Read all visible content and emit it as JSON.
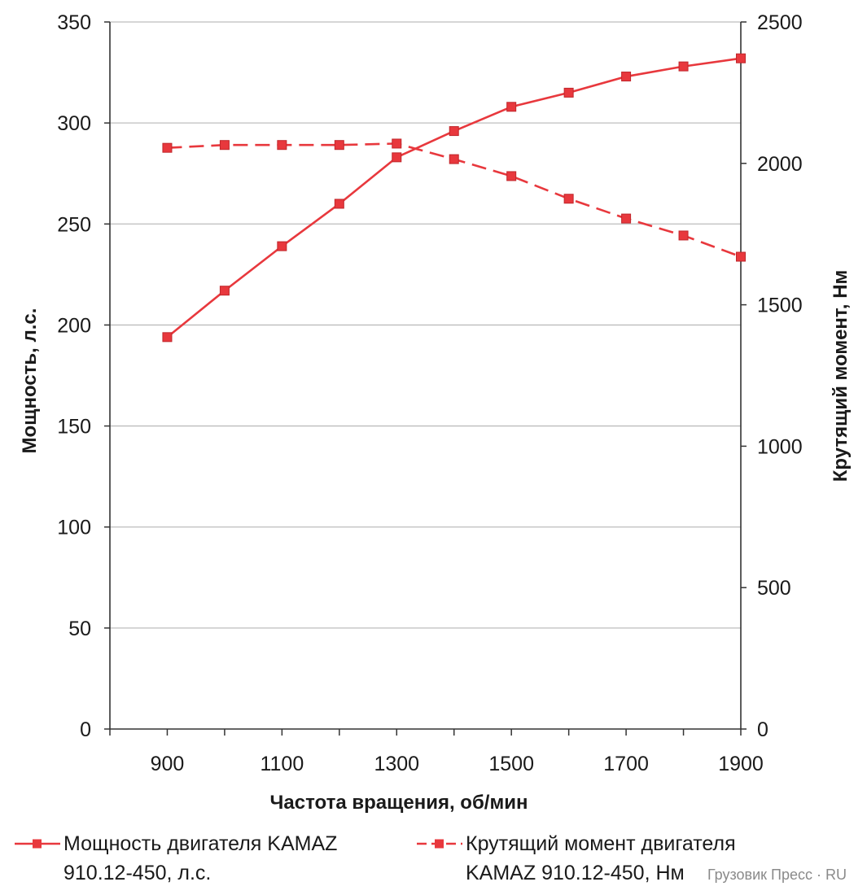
{
  "chart_data": {
    "type": "line",
    "xlabel": "Частота вращения, об/мин",
    "ylabel": "Мощность, л.с.",
    "y2label": "Крутящий момент, Нм",
    "xticks": [
      "900",
      "1100",
      "1300",
      "1500",
      "1700",
      "1900"
    ],
    "yticks": [
      "0",
      "50",
      "100",
      "150",
      "200",
      "250",
      "300",
      "350"
    ],
    "y2ticks": [
      "0",
      "500",
      "1000",
      "1500",
      "2000",
      "2500"
    ],
    "xlim": [
      800,
      1900
    ],
    "ylim": [
      0,
      350
    ],
    "y2lim": [
      0,
      2500
    ],
    "grid": true,
    "legend_position": "bottom",
    "x": [
      900,
      1000,
      1100,
      1200,
      1300,
      1400,
      1500,
      1600,
      1700,
      1800,
      1900
    ],
    "series": [
      {
        "name": "Мощность двигателя KAMAZ 910.12-450, л.с.",
        "axis": "left",
        "style": "solid",
        "color": "#e8383d",
        "values": [
          194,
          217,
          239,
          260,
          283,
          296,
          308,
          315,
          323,
          328,
          332
        ]
      },
      {
        "name": "Крутящий момент двигателя KAMAZ 910.12-450, Нм",
        "axis": "right",
        "style": "dashed",
        "color": "#e8383d",
        "values": [
          2055,
          2065,
          2065,
          2065,
          2070,
          2015,
          1955,
          1875,
          1805,
          1745,
          1670
        ]
      }
    ],
    "legend_lines": [
      [
        "Мощность двигателя KAMAZ",
        "910.12-450, л.с."
      ],
      [
        "Крутящий момент двигателя",
        "KAMAZ 910.12-450, Нм"
      ]
    ]
  },
  "watermark": "Грузовик Пресс · RU"
}
